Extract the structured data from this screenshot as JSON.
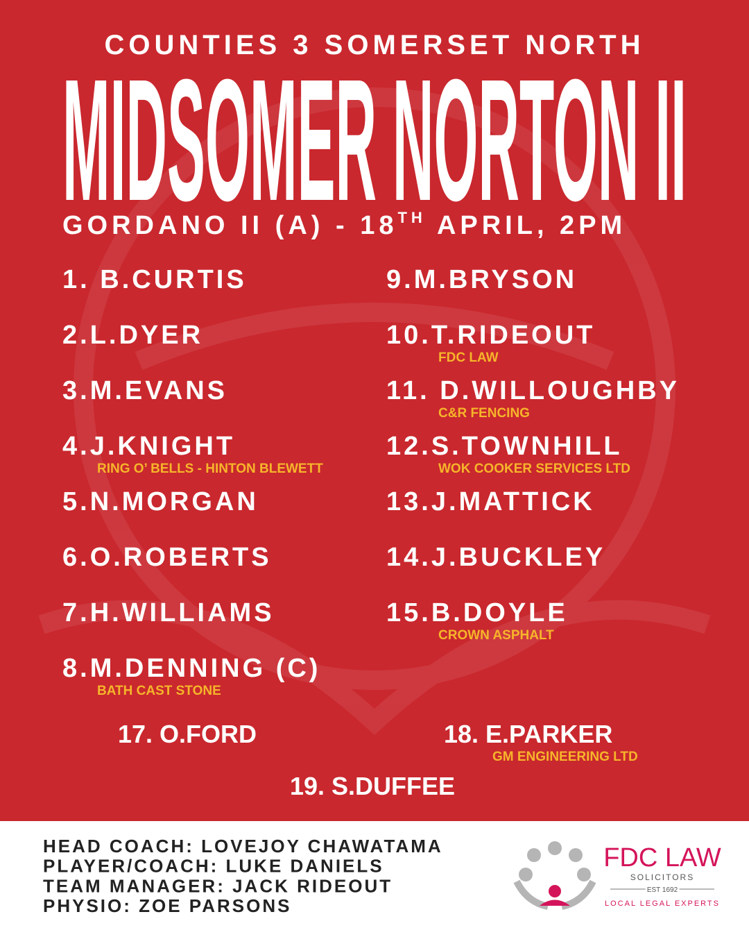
{
  "header": {
    "league": "COUNTIES 3 SOMERSET NORTH",
    "team": "MIDSOMER NORTON II",
    "fixture": "GORDANO II (A) - 18",
    "fixture_sup": "TH",
    "fixture_end": " APRIL, 2PM"
  },
  "starters_left": [
    {
      "name": "1. B.CURTIS"
    },
    {
      "name": "2.L.DYER"
    },
    {
      "name": "3.M.EVANS"
    },
    {
      "name": "4.J.KNIGHT",
      "sponsor": "RING O’ BELLS - HINTON BLEWETT"
    },
    {
      "name": "5.N.MORGAN"
    },
    {
      "name": "6.O.ROBERTS"
    },
    {
      "name": "7.H.WILLIAMS"
    },
    {
      "name": "8.M.DENNING (C)",
      "sponsor": "BATH CAST STONE"
    }
  ],
  "starters_right": [
    {
      "name": "9.M.BRYSON"
    },
    {
      "name": "10.T.RIDEOUT",
      "sponsor": "FDC LAW"
    },
    {
      "name": "11. D.WILLOUGHBY",
      "sponsor": "C&R FENCING"
    },
    {
      "name": "12.S.TOWNHILL",
      "sponsor": "WOK COOKER SERVICES LTD"
    },
    {
      "name": "13.J.MATTICK"
    },
    {
      "name": "14.J.BUCKLEY"
    },
    {
      "name": "15.B.DOYLE",
      "sponsor": "CROWN ASPHALT"
    }
  ],
  "replacements": [
    {
      "name": "17. O.FORD"
    },
    {
      "name": "18. E.PARKER",
      "sponsor": "GM ENGINEERING LTD"
    },
    {
      "name": "19. S.DUFFEE"
    }
  ],
  "staff": [
    "HEAD COACH: LOVEJOY CHAWATAMA",
    "PLAYER/COACH: LUKE DANIELS",
    "TEAM MANAGER: JACK RIDEOUT",
    "PHYSIO: ZOE PARSONS"
  ],
  "logo": {
    "name": "FDC LAW",
    "sub": "SOLICITORS",
    "est": "EST 1692",
    "tagline": "LOCAL LEGAL EXPERTS"
  }
}
